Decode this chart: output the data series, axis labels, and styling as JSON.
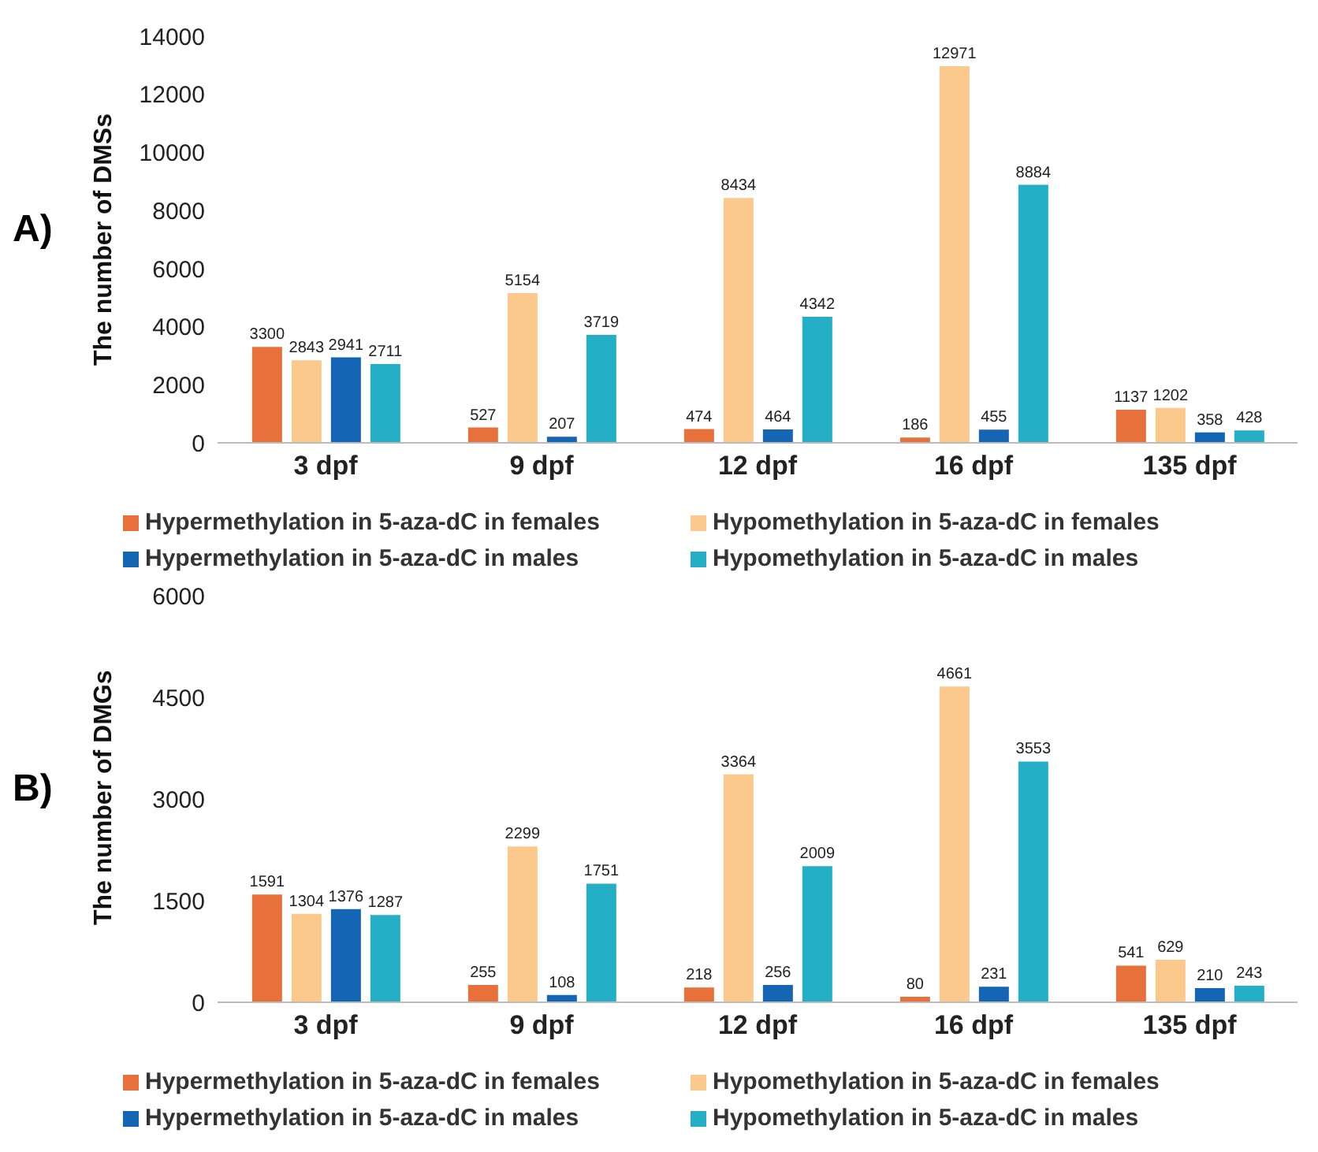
{
  "chart_data": [
    {
      "type": "bar",
      "annotations": [
        "A)"
      ],
      "ylabel": "The number of DMSs",
      "categories": [
        "3 dpf",
        "9 dpf",
        "12 dpf",
        "16 dpf",
        "135 dpf"
      ],
      "ylim": [
        0,
        14000
      ],
      "yticks": [
        0,
        2000,
        4000,
        6000,
        8000,
        10000,
        12000,
        14000
      ],
      "grid": false,
      "legend": "bottom",
      "data_labels": true,
      "series": [
        {
          "name": "Hypermethylation in 5-aza-dC in females",
          "color": "#e8703a",
          "values": [
            3300,
            527,
            474,
            186,
            1137
          ]
        },
        {
          "name": "Hypomethylation in 5-aza-dC in females",
          "color": "#fbc98c",
          "values": [
            2843,
            5154,
            8434,
            12971,
            1202
          ]
        },
        {
          "name": "Hypermethylation in 5-aza-dC in males",
          "color": "#1565b5",
          "values": [
            2941,
            207,
            464,
            455,
            358
          ]
        },
        {
          "name": "Hypomethylation in 5-aza-dC in males",
          "color": "#25afc6",
          "values": [
            2711,
            3719,
            4342,
            8884,
            428
          ]
        }
      ]
    },
    {
      "type": "bar",
      "annotations": [
        "B)"
      ],
      "ylabel": "The number of DMGs",
      "categories": [
        "3 dpf",
        "9 dpf",
        "12 dpf",
        "16 dpf",
        "135 dpf"
      ],
      "ylim": [
        0,
        6000
      ],
      "yticks": [
        0,
        1500,
        3000,
        4500,
        6000
      ],
      "grid": false,
      "legend": "bottom",
      "data_labels": true,
      "series": [
        {
          "name": "Hypermethylation in 5-aza-dC in females",
          "color": "#e8703a",
          "values": [
            1591,
            255,
            218,
            80,
            541
          ]
        },
        {
          "name": "Hypomethylation in 5-aza-dC in females",
          "color": "#fbc98c",
          "values": [
            1304,
            2299,
            3364,
            4661,
            629
          ]
        },
        {
          "name": "Hypermethylation in 5-aza-dC in males",
          "color": "#1565b5",
          "values": [
            1376,
            108,
            256,
            231,
            210
          ]
        },
        {
          "name": "Hypomethylation in 5-aza-dC in males",
          "color": "#25afc6",
          "values": [
            1287,
            1751,
            2009,
            3553,
            243
          ]
        }
      ]
    }
  ]
}
